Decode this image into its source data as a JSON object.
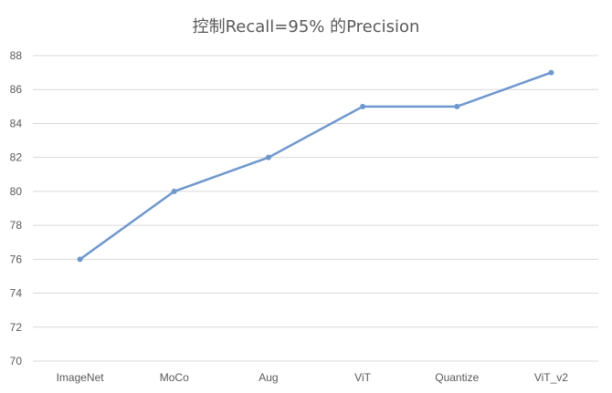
{
  "chart_data": {
    "type": "line",
    "title": "控制Recall=95% 的Precision",
    "categories": [
      "ImageNet",
      "MoCo",
      "Aug",
      "ViT",
      "Quantize",
      "ViT_v2"
    ],
    "series": [
      {
        "values": [
          76,
          80,
          82,
          85,
          85,
          87
        ]
      }
    ],
    "ylim": [
      70,
      88
    ],
    "yticks": [
      "70",
      "72",
      "74",
      "76",
      "78",
      "80",
      "82",
      "84",
      "86",
      "88"
    ],
    "grid": true,
    "legend": "none",
    "xlabel": "",
    "ylabel": "",
    "colors": {
      "series": "#6d97cf",
      "grid": "#d9d9d9",
      "text": "#595959"
    }
  }
}
